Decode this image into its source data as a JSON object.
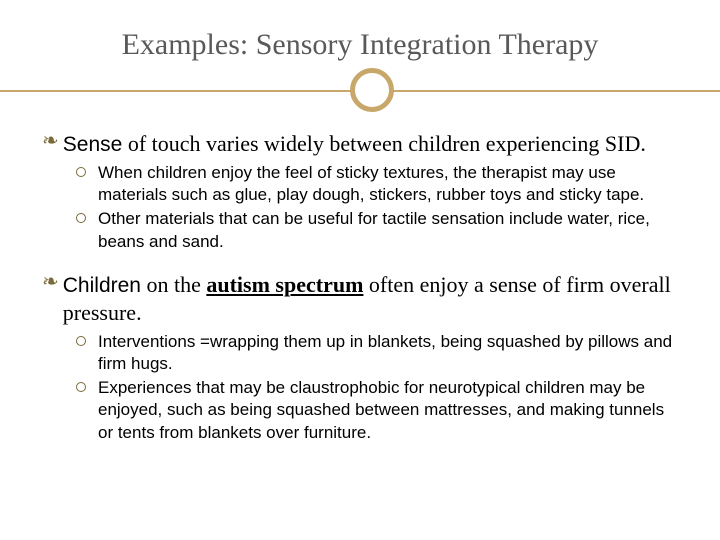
{
  "title": "Examples: Sensory Integration Therapy",
  "colors": {
    "accent": "#c7a86a",
    "bullet_border": "#7a6a3a",
    "title_color": "#595959",
    "text_color": "#000000",
    "background": "#ffffff"
  },
  "typography": {
    "title_font": "Georgia",
    "title_size_pt": 30,
    "body_font": "Arial",
    "main_size_pt": 21,
    "sub_size_pt": 17
  },
  "bullets": [
    {
      "lead": "Sense",
      "rest": " of touch varies widely between children experiencing SID.",
      "subs": [
        "When children enjoy the feel of sticky textures, the therapist may use materials such as glue, play dough, stickers, rubber toys and sticky tape.",
        "Other materials that can be useful for tactile sensation include water, rice, beans and sand."
      ]
    },
    {
      "lead": "Children",
      "rest_pre": " on the ",
      "emph": "autism spectrum",
      "rest_post": " often enjoy a sense of firm overall pressure.",
      "subs": [
        "Interventions =wrapping them up in blankets, being squashed by pillows and firm hugs.",
        "Experiences that may be claustrophobic for neurotypical children may be enjoyed, such as being squashed between mattresses, and making tunnels or tents from blankets over furniture."
      ]
    }
  ]
}
